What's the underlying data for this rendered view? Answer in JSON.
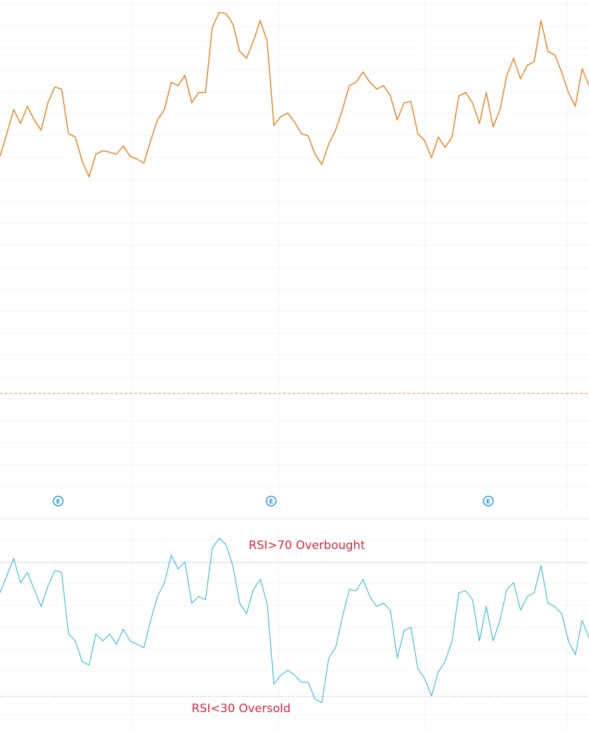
{
  "chart_data": [
    {
      "type": "line",
      "ylim": [
        0,
        742
      ],
      "price_line": 168,
      "price_line_color": "#e8892a",
      "events": [
        "E",
        "E",
        "E"
      ],
      "series": [
        {
          "color": "#e8892a",
          "values": [
            514,
            547,
            582,
            562,
            587,
            567,
            552,
            592,
            615,
            612,
            547,
            542,
            507,
            484,
            517,
            522,
            520,
            517,
            529,
            514,
            510,
            504,
            537,
            567,
            582,
            622,
            617,
            632,
            592,
            607,
            607,
            702,
            724,
            722,
            707,
            667,
            657,
            682,
            712,
            682,
            559,
            572,
            577,
            564,
            547,
            544,
            517,
            502,
            532,
            552,
            582,
            617,
            622,
            637,
            622,
            612,
            617,
            602,
            567,
            592,
            594,
            547,
            537,
            512,
            542,
            527,
            542,
            602,
            607,
            592,
            562,
            607,
            557,
            582,
            632,
            657,
            627,
            647,
            652,
            712,
            667,
            662,
            637,
            607,
            587,
            642,
            617
          ]
        }
      ]
    },
    {
      "type": "line",
      "ylim": [
        20,
        80
      ],
      "levels": [
        {
          "value": 70,
          "label": "RSI>70 Overbought"
        },
        {
          "value": 30,
          "label": "RSI<30 Oversold"
        }
      ],
      "annotation_color": "#d8283c",
      "series": [
        {
          "color": "#2bb5d8",
          "values": [
            61.0,
            66.1,
            71.2,
            64.0,
            67.1,
            62.0,
            56.9,
            63.0,
            67.7,
            67.1,
            48.7,
            46.6,
            40.5,
            39.4,
            48.7,
            46.6,
            48.7,
            45.6,
            50.1,
            46.6,
            45.6,
            44.6,
            52.8,
            59.9,
            64.0,
            72.2,
            68.1,
            70.2,
            57.9,
            59.9,
            58.9,
            74.3,
            77.3,
            75.3,
            69.1,
            57.9,
            54.8,
            62.0,
            65.0,
            57.9,
            33.7,
            36.4,
            37.8,
            36.4,
            34.3,
            34.3,
            29.2,
            28.2,
            41.5,
            44.6,
            53.8,
            62.0,
            61.6,
            65.0,
            59.9,
            56.9,
            57.9,
            55.8,
            41.5,
            49.7,
            50.7,
            38.4,
            35.4,
            30.2,
            37.4,
            40.5,
            46.6,
            61.0,
            61.6,
            58.9,
            46.6,
            56.9,
            46.6,
            52.8,
            62.0,
            64.0,
            55.8,
            59.9,
            61.0,
            69.1,
            57.9,
            56.9,
            54.8,
            46.6,
            42.5,
            52.8,
            47.6
          ]
        }
      ]
    }
  ]
}
